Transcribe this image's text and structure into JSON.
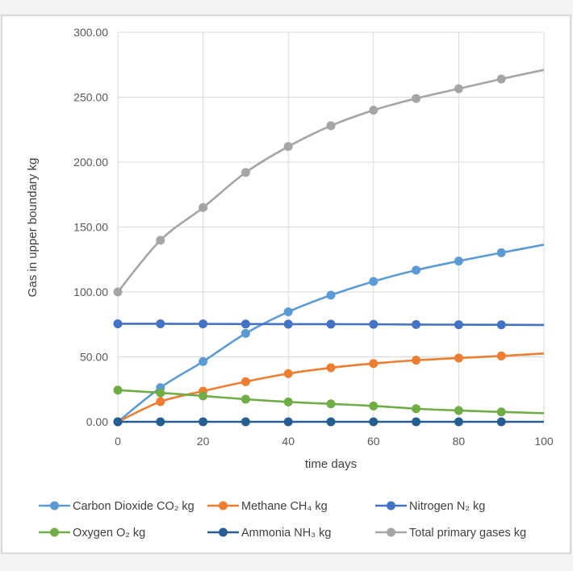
{
  "chart_data": {
    "type": "line",
    "title": "",
    "xlabel": "time days",
    "ylabel": "Gas in upper boundary kg",
    "xlim": [
      0,
      100
    ],
    "ylim": [
      0,
      300
    ],
    "x_ticks": [
      "0",
      "20",
      "40",
      "60",
      "80",
      "100"
    ],
    "x_tick_values": [
      0,
      20,
      40,
      60,
      80,
      100
    ],
    "y_ticks": [
      "0.00",
      "50.00",
      "100.00",
      "150.00",
      "200.00",
      "250.00",
      "300.00"
    ],
    "y_tick_values": [
      0,
      50,
      100,
      150,
      200,
      250,
      300
    ],
    "grid": true,
    "legend_position": "bottom",
    "x": [
      0,
      10,
      20,
      30,
      40,
      50,
      60,
      70,
      80,
      90,
      100
    ],
    "series": [
      {
        "name": "Carbon Dioxide CO₂ kg",
        "color": "#5b9bd5",
        "values": [
          0,
          26.3,
          46.4,
          68.1,
          84.7,
          97.5,
          108.1,
          116.8,
          123.8,
          130.2,
          136.4
        ]
      },
      {
        "name": "Methane CH₄ kg",
        "color": "#ed7d31",
        "values": [
          0,
          15.5,
          23.6,
          30.9,
          37.1,
          41.6,
          44.9,
          47.4,
          49.1,
          50.7,
          52.6
        ]
      },
      {
        "name": "Nitrogen N₂ kg",
        "color": "#4472c4",
        "values": [
          75.5,
          75.5,
          75.4,
          75.3,
          75.2,
          75.2,
          75.1,
          74.9,
          74.8,
          74.7,
          74.6
        ]
      },
      {
        "name": "Oxygen O₂ kg",
        "color": "#70ad47",
        "values": [
          24.4,
          22.3,
          19.9,
          17.4,
          15.3,
          13.8,
          12.2,
          10.1,
          8.7,
          7.6,
          6.6
        ]
      },
      {
        "name": "Ammonia NH₃ kg",
        "color": "#255e91",
        "values": [
          0,
          0,
          0,
          0,
          0,
          0,
          0,
          0,
          0,
          0,
          0
        ]
      },
      {
        "name": "Total primary gases kg",
        "color": "#a5a5a5",
        "values": [
          100,
          139.8,
          165,
          192,
          212,
          228,
          240,
          249,
          256.5,
          264,
          271
        ]
      }
    ]
  }
}
